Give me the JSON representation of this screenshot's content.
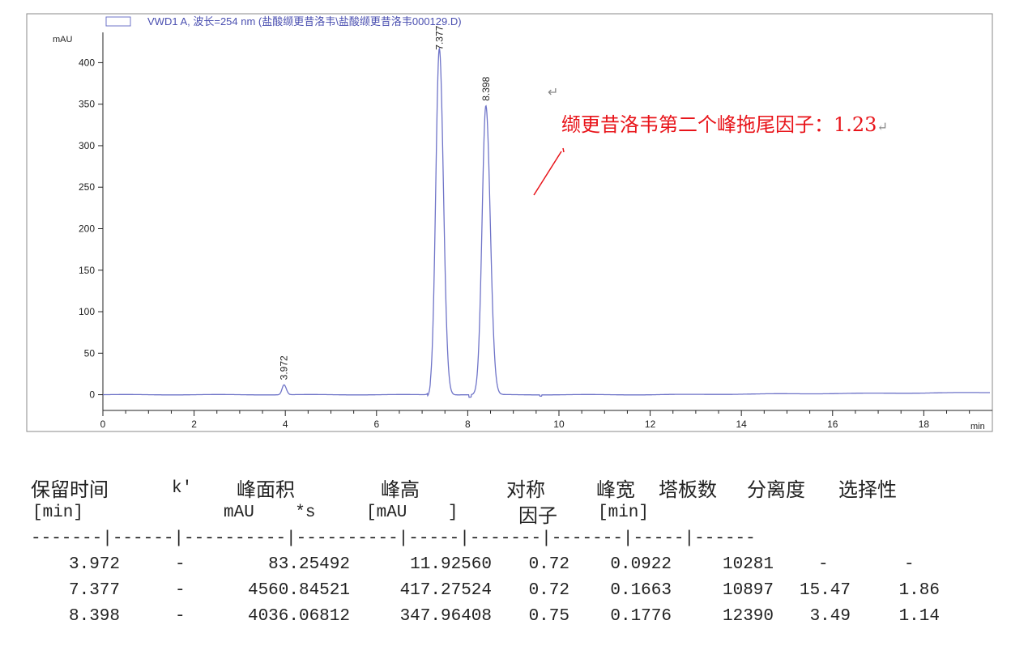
{
  "chart_data": {
    "type": "line",
    "title": "VWD1 A, 波长=254 nm (盐酸缬更昔洛韦\\盐酸缬更昔洛韦000129.D)",
    "ylabel": "mAU",
    "xlabel": "min",
    "xlim": [
      0,
      19.45
    ],
    "ylim": [
      -17,
      456
    ],
    "x_ticks": [
      0,
      2,
      4,
      6,
      8,
      10,
      12,
      14,
      16,
      18
    ],
    "y_ticks": [
      0,
      50,
      100,
      150,
      200,
      250,
      300,
      350,
      400
    ],
    "grid": false,
    "line_color": "#6f74c8",
    "peaks": [
      {
        "label": "3.972",
        "rt": 3.972,
        "height": 11.9256,
        "width": 0.0922
      },
      {
        "label": "7.377",
        "rt": 7.377,
        "height": 417.27524,
        "width": 0.1663
      },
      {
        "label": "8.398",
        "rt": 8.398,
        "height": 347.96408,
        "width": 0.1776
      }
    ]
  },
  "annotation": {
    "text": "缬更昔洛韦第二个峰拖尾因子：1.23",
    "color": "#e8141a",
    "return_mark": "↵"
  },
  "table": {
    "headers_top": [
      "保留时间",
      "k'",
      "峰面积",
      "峰高",
      "对称",
      "峰宽",
      "塔板数",
      "分离度",
      "选择性"
    ],
    "headers_sub": [
      "[min]",
      "mAU    *s",
      "[mAU    ]",
      "因子",
      "[min]"
    ],
    "separator": "-------|------|----------|----------|-----|-------|-------|-----|------",
    "rows": [
      [
        "3.972",
        "-",
        "83.25492",
        "11.92560",
        "0.72",
        "0.0922",
        "10281",
        "-",
        "-"
      ],
      [
        "7.377",
        "-",
        "4560.84521",
        "417.27524",
        "0.72",
        "0.1663",
        "10897",
        "15.47",
        "1.86"
      ],
      [
        "8.398",
        "-",
        "4036.06812",
        "347.96408",
        "0.75",
        "0.1776",
        "12390",
        "3.49",
        "1.14"
      ]
    ]
  }
}
